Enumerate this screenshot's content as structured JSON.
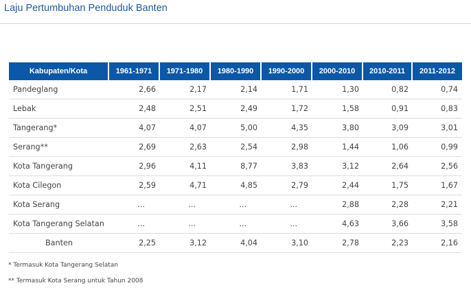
{
  "page": {
    "title": "Laju Pertumbuhan Penduduk Banten"
  },
  "table": {
    "headers": [
      "Kabupaten/Kota",
      "1961-1971",
      "1971-1980",
      "1980-1990",
      "1990-2000",
      "2000-2010",
      "2010-2011",
      "2011-2012"
    ],
    "rows": [
      [
        "Pandeglang",
        "2,66",
        "2,17",
        "2,14",
        "1,71",
        "1,30",
        "0,82",
        "0,74"
      ],
      [
        "Lebak",
        "2,48",
        "2,51",
        "2,49",
        "1,72",
        "1,58",
        "0,91",
        "0,83"
      ],
      [
        "Tangerang*",
        "4,07",
        "4,07",
        "5,00",
        "4,35",
        "3,80",
        "3,09",
        "3,01"
      ],
      [
        "Serang**",
        "2,69",
        "2,63",
        "2,54",
        "2,98",
        "1,44",
        "1,06",
        "0,99"
      ],
      [
        "Kota Tangerang",
        "2,96",
        "4,11",
        "8,77",
        "3,83",
        "3,12",
        "2,64",
        "2,56"
      ],
      [
        "Kota Cilegon",
        "2,59",
        "4,71",
        "4,85",
        "2,79",
        "2,44",
        "1,75",
        "1,67"
      ],
      [
        "Kota Serang",
        "...",
        "...",
        "...",
        "...",
        "2,88",
        "2,28",
        "2,21"
      ],
      [
        "Kota Tangerang Selatan",
        "...",
        "...",
        "...",
        "...",
        "4,63",
        "3,66",
        "3,58"
      ],
      [
        "Banten",
        "2,25",
        "3,12",
        "4,04",
        "3,10",
        "2,78",
        "2,23",
        "2,16"
      ]
    ]
  },
  "footnotes": [
    "* Termasuk Kota Tangerang Selatan",
    "** Termasuk Kota Serang untuk Tahun 2008"
  ],
  "colors": {
    "header_bg": "#0b57a8",
    "title_text": "#1f5c9c"
  }
}
